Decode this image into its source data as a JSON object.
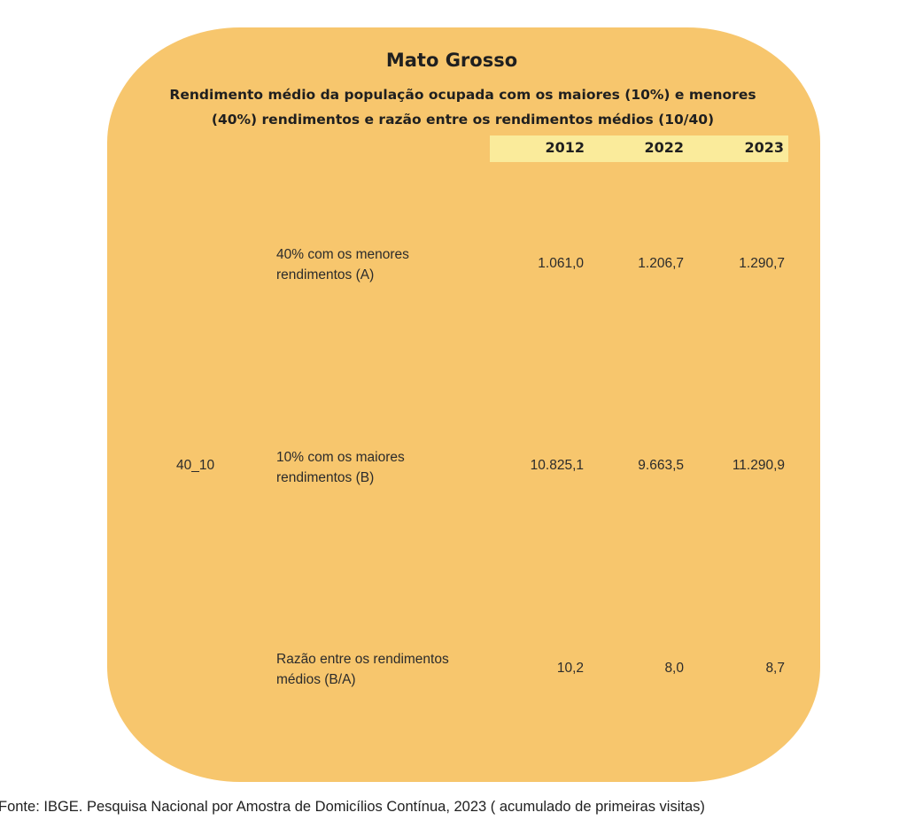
{
  "title": "Mato Grosso",
  "subtitle_line1": "Rendimento médio da população ocupada com os maiores (10%) e menores",
  "subtitle_line2": "(40%) rendimentos e razão entre os rendimentos médios (10/40)",
  "columns": [
    "2012",
    "2022",
    "2023"
  ],
  "group_label": "40_10",
  "rows": [
    {
      "label_line1": "40% com os menores",
      "label_line2": "rendimentos (A)",
      "values": [
        "1.061,0",
        "1.206,7",
        "1.290,7"
      ]
    },
    {
      "label_line1": "10% com os maiores",
      "label_line2": "rendimentos (B)",
      "values": [
        "10.825,1",
        "9.663,5",
        "11.290,9"
      ]
    },
    {
      "label_line1": "Razão entre os rendimentos",
      "label_line2": "médios (B/A)",
      "values": [
        "10,2",
        "8,0",
        "8,7"
      ]
    }
  ],
  "source": "Fonte: IBGE. Pesquisa Nacional por Amostra de Domicílios Contínua, 2023 ( acumulado de primeiras visitas)",
  "colors": {
    "card_background": "#f7c66d",
    "header_band": "#faeb9b"
  }
}
